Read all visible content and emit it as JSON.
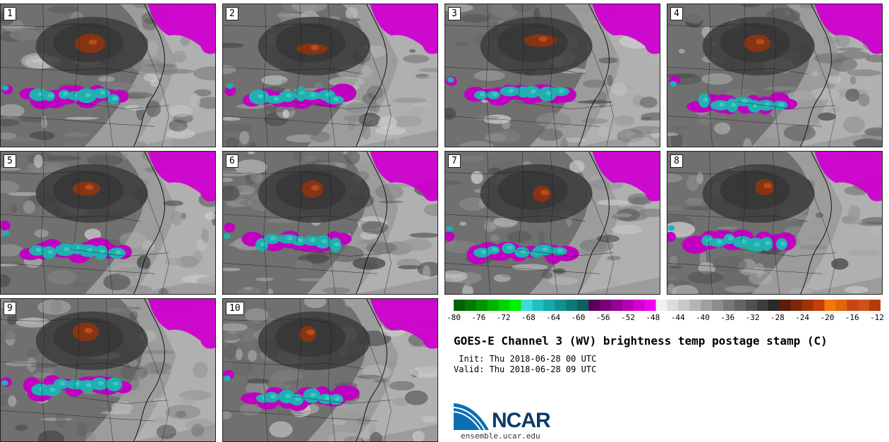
{
  "panels": [
    {
      "label": "1"
    },
    {
      "label": "2"
    },
    {
      "label": "3"
    },
    {
      "label": "4"
    },
    {
      "label": "5"
    },
    {
      "label": "6"
    },
    {
      "label": "7"
    },
    {
      "label": "8"
    },
    {
      "label": "9"
    },
    {
      "label": "10"
    }
  ],
  "colorbar": {
    "ticks": [
      "-80",
      "-76",
      "-72",
      "-68",
      "-64",
      "-60",
      "-56",
      "-52",
      "-48",
      "-44",
      "-40",
      "-36",
      "-32",
      "-28",
      "-24",
      "-20",
      "-16",
      "-12"
    ],
    "colors": [
      "#006400",
      "#007a00",
      "#009600",
      "#00b400",
      "#00d200",
      "#00f000",
      "#40d8d8",
      "#20c0c0",
      "#10a8a8",
      "#109090",
      "#0e7878",
      "#0c6060",
      "#5a005a",
      "#780078",
      "#960096",
      "#b400b4",
      "#d200d2",
      "#f000f0",
      "#f0f0f0",
      "#dcdcdc",
      "#c8c8c8",
      "#b4b4b4",
      "#a0a0a0",
      "#8c8c8c",
      "#787878",
      "#646464",
      "#505050",
      "#3c3c3c",
      "#282828",
      "#5a1e0a",
      "#7a280a",
      "#a0320a",
      "#c83c0a",
      "#f0780a",
      "#e0640a",
      "#c84614",
      "#d25014",
      "#b43c0a"
    ]
  },
  "title": "GOES-E Channel 3 (WV) brightness temp postage stamp (C)",
  "init": " Init: Thu 2018-06-28 00 UTC",
  "valid": "Valid: Thu 2018-06-28 09 UTC",
  "logo": {
    "name": "NCAR",
    "url": "ensemble.ucar.edu"
  }
}
